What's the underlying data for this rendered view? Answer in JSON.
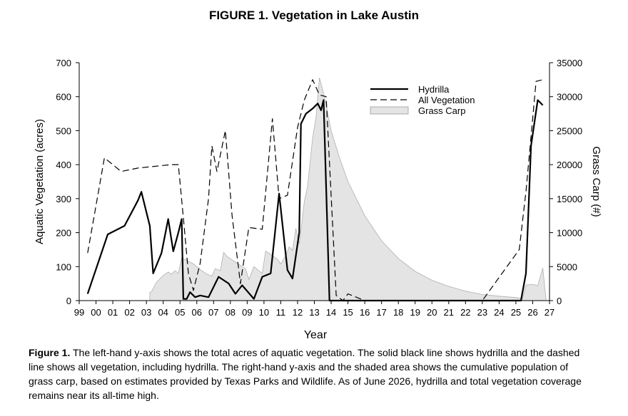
{
  "page_title": "FIGURE 1. Vegetation in Lake Austin",
  "caption": {
    "label": "Figure 1.",
    "text": "The left-hand y-axis shows the total acres of aquatic vegetation. The solid black line shows hydrilla and the dashed line shows all vegetation, including hydrilla. The right-hand y-axis and the shaded area shows the cumulative population of grass carp, based on estimates provided by Texas Parks and Wildlife. As of June 2026, hydrilla and total vegetation coverage remains near its all-time high."
  },
  "chart_data": {
    "type": "line",
    "xlabel": "Year",
    "ylabel": "Aquatic Vegetation (acres)",
    "y2label": "Grass Carp (#)",
    "xlim": [
      99,
      127
    ],
    "ylim": [
      0,
      700
    ],
    "y2lim": [
      0,
      35000
    ],
    "x_ticks": [
      99,
      100,
      101,
      102,
      103,
      104,
      105,
      106,
      107,
      108,
      109,
      110,
      111,
      112,
      113,
      114,
      115,
      116,
      117,
      118,
      119,
      120,
      121,
      122,
      123,
      124,
      125,
      126,
      127
    ],
    "x_tick_labels": [
      "99",
      "00",
      "01",
      "02",
      "03",
      "04",
      "05",
      "06",
      "07",
      "08",
      "09",
      "10",
      "11",
      "12",
      "13",
      "14",
      "15",
      "16",
      "17",
      "18",
      "19",
      "20",
      "21",
      "22",
      "23",
      "24",
      "25",
      "26",
      "27"
    ],
    "y_ticks": [
      0,
      100,
      200,
      300,
      400,
      500,
      600,
      700
    ],
    "y2_ticks": [
      0,
      5000,
      10000,
      15000,
      20000,
      25000,
      30000,
      35000
    ],
    "legend_position": "top-right",
    "legend": [
      "Hydrilla",
      "All Vegetation",
      "Grass Carp"
    ],
    "series": [
      {
        "name": "Hydrilla",
        "axis": "left",
        "style": "solid",
        "color": "#000000",
        "x": [
          99.5,
          100.7,
          101.7,
          102.5,
          102.7,
          103.2,
          103.4,
          103.9,
          104.3,
          104.6,
          104.9,
          105.1,
          105.2,
          105.4,
          105.6,
          105.9,
          106.2,
          106.7,
          107.3,
          107.6,
          107.9,
          108.3,
          108.7,
          109.4,
          109.9,
          110.4,
          110.9,
          111.4,
          111.7,
          112.1,
          112.2,
          112.5,
          112.9,
          113.2,
          113.4,
          113.55,
          113.9,
          114.0,
          115.0,
          125.3,
          125.6,
          125.9,
          126.3,
          126.6
        ],
        "y": [
          20,
          195,
          220,
          295,
          320,
          220,
          80,
          140,
          240,
          145,
          200,
          240,
          5,
          5,
          25,
          10,
          15,
          10,
          70,
          60,
          50,
          20,
          45,
          5,
          70,
          80,
          315,
          90,
          65,
          200,
          520,
          550,
          565,
          580,
          560,
          590,
          0,
          0,
          0,
          0,
          80,
          455,
          590,
          575
        ]
      },
      {
        "name": "All Vegetation",
        "axis": "left",
        "style": "dashed",
        "color": "#000000",
        "x": [
          99.5,
          100.5,
          101.5,
          102.5,
          103.5,
          104.5,
          104.9,
          105.2,
          105.5,
          105.8,
          106.2,
          106.7,
          106.9,
          107.2,
          107.7,
          108.1,
          108.6,
          109.1,
          109.9,
          110.5,
          110.9,
          111.4,
          112.0,
          112.4,
          112.9,
          113.3,
          113.7,
          114.0,
          114.3,
          114.7,
          115.0,
          116.0,
          123.0,
          125.2,
          125.6,
          126.2,
          126.6
        ],
        "y": [
          140,
          420,
          380,
          390,
          395,
          400,
          400,
          245,
          80,
          30,
          110,
          300,
          455,
          380,
          500,
          250,
          50,
          215,
          210,
          535,
          300,
          310,
          510,
          590,
          650,
          605,
          600,
          310,
          15,
          0,
          20,
          0,
          0,
          150,
          320,
          645,
          650
        ]
      },
      {
        "name": "Grass Carp",
        "axis": "right",
        "style": "area",
        "color": "#e4e4e4",
        "x": [
          103.2,
          103.3,
          103.6,
          103.8,
          104.0,
          104.3,
          104.5,
          104.7,
          104.9,
          105.1,
          105.5,
          105.8,
          106.0,
          106.3,
          106.6,
          106.9,
          107.1,
          107.4,
          107.6,
          107.8,
          108.1,
          108.4,
          108.7,
          108.9,
          109.1,
          109.4,
          109.7,
          109.9,
          110.1,
          110.5,
          110.8,
          111.0,
          111.3,
          111.5,
          111.7,
          111.9,
          112.1,
          112.4,
          112.6,
          112.9,
          113.1,
          113.3,
          113.6,
          113.8,
          114.0,
          114.5,
          115.0,
          116.0,
          117.0,
          118.0,
          119.0,
          120.0,
          121.0,
          122.0,
          123.0,
          124.0,
          125.0,
          125.4,
          125.6,
          126.0,
          126.3,
          126.6,
          126.8
        ],
        "y": [
          1200,
          1300,
          2700,
          3200,
          3700,
          4200,
          3900,
          4400,
          4000,
          6300,
          5800,
          5400,
          5000,
          4400,
          3900,
          3600,
          4700,
          4400,
          7100,
          6500,
          6000,
          5500,
          5000,
          4700,
          3100,
          5000,
          4400,
          4000,
          7300,
          6600,
          6100,
          5400,
          6600,
          7900,
          7400,
          10600,
          8300,
          14500,
          16900,
          24000,
          27000,
          32800,
          30000,
          27600,
          25000,
          21000,
          17500,
          12500,
          8800,
          6200,
          4300,
          3000,
          2100,
          1400,
          900,
          650,
          450,
          300,
          2300,
          2400,
          2200,
          4800,
          0
        ]
      }
    ]
  }
}
